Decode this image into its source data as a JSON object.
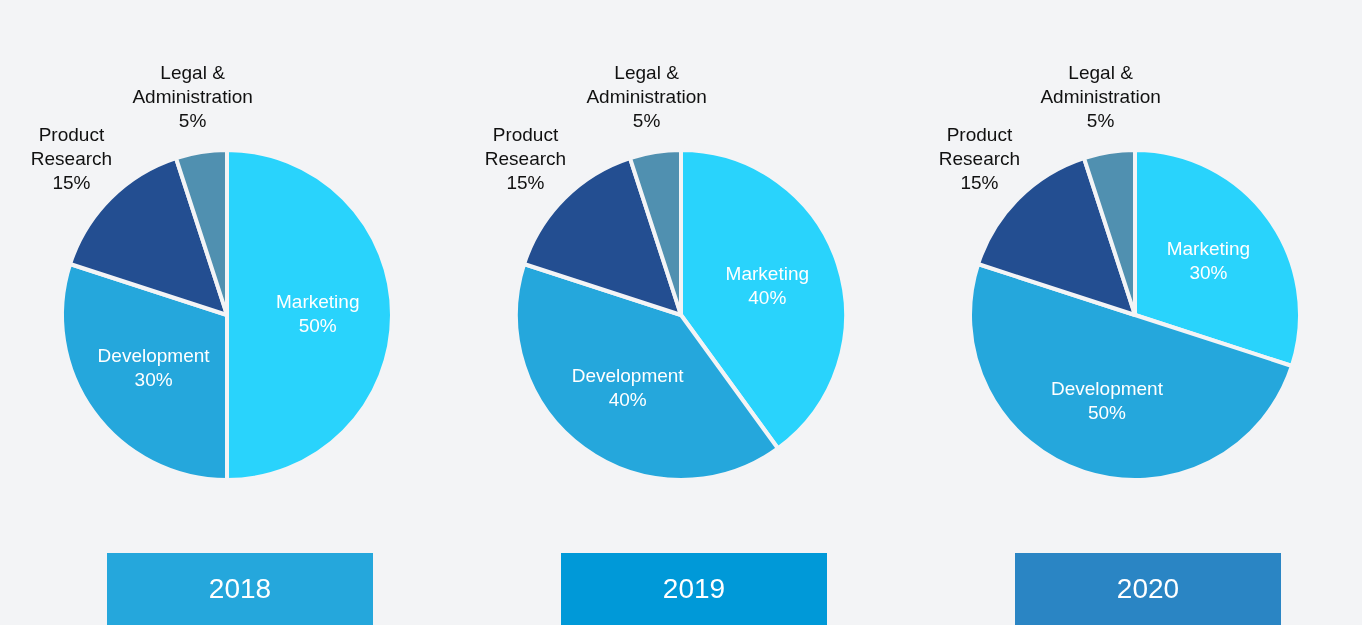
{
  "chart_data": [
    {
      "type": "pie",
      "title": "2018",
      "categories": [
        "Marketing",
        "Development",
        "Product Research",
        "Legal & Administration"
      ],
      "values": [
        50,
        30,
        15,
        5
      ],
      "colors": [
        "#29d3fc",
        "#25a7dc",
        "#234e91",
        "#5090b0"
      ],
      "value_labels": [
        "50%",
        "30%",
        "15%",
        "5%"
      ]
    },
    {
      "type": "pie",
      "title": "2019",
      "categories": [
        "Marketing",
        "Development",
        "Product Research",
        "Legal & Administration"
      ],
      "values": [
        40,
        40,
        15,
        5
      ],
      "colors": [
        "#29d3fc",
        "#25a7dc",
        "#234e91",
        "#5090b0"
      ],
      "value_labels": [
        "40%",
        "40%",
        "15%",
        "5%"
      ]
    },
    {
      "type": "pie",
      "title": "2020",
      "categories": [
        "Marketing",
        "Development",
        "Product Research",
        "Legal & Administration"
      ],
      "values": [
        30,
        50,
        15,
        5
      ],
      "colors": [
        "#29d3fc",
        "#25a7dc",
        "#234e91",
        "#5090b0"
      ],
      "value_labels": [
        "30%",
        "50%",
        "15%",
        "5%"
      ]
    }
  ]
}
